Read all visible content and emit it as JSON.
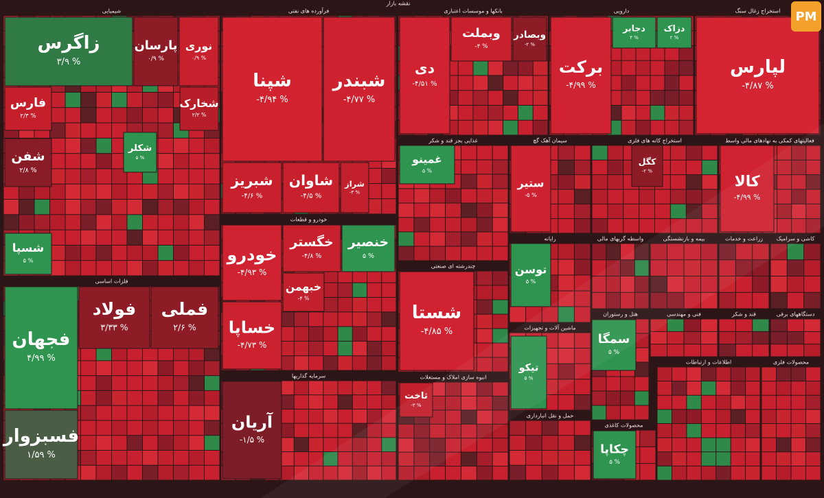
{
  "header": {
    "title": "نقشه بازار",
    "logo": "PM"
  },
  "sectors": [
    {
      "name": "شیمیایی",
      "tiles": [
        {
          "label": "زاگرس",
          "change": "۳/۹ %",
          "color": "#2f7a45"
        },
        {
          "label": "پارسان",
          "change": "۰/۹ %",
          "color": "#8d1c27"
        },
        {
          "label": "نوری",
          "change": "۰/۹ %",
          "color": "#c9202d"
        },
        {
          "label": "فارس",
          "change": "۲/۳ %",
          "color": "#c61f2c"
        },
        {
          "label": "شخارک",
          "change": "۲/۲ %",
          "color": "#b81e2a"
        },
        {
          "label": "شفن",
          "change": "۲/۸ %",
          "color": "#8a1c27"
        },
        {
          "label": "شکلر",
          "change": "۵ %",
          "color": "#2f9450"
        },
        {
          "label": "شسپا",
          "change": "۵ %",
          "color": "#2f9450"
        }
      ]
    },
    {
      "name": "فلزات اساسی",
      "tiles": [
        {
          "label": "فجهان",
          "change": "۴/۹۹ %",
          "color": "#2f9450"
        },
        {
          "label": "فسبزوار",
          "change": "۱/۵۹ %",
          "color": "#4a5d45"
        },
        {
          "label": "فولاد",
          "change": "۳/۳۳ %",
          "color": "#8d1c27"
        },
        {
          "label": "فملی",
          "change": "۲/۶ %",
          "color": "#8d1c27"
        }
      ]
    },
    {
      "name": "فرآورده های نفتی",
      "tiles": [
        {
          "label": "شپنا",
          "change": "-۴/۹۴ %",
          "color": "#d32331"
        },
        {
          "label": "شبندر",
          "change": "-۴/۷۷ %",
          "color": "#cf2230"
        },
        {
          "label": "شبریز",
          "change": "-۴/۶ %",
          "color": "#c9202d"
        },
        {
          "label": "شاوان",
          "change": "-۴/۵ %",
          "color": "#c9202d"
        },
        {
          "label": "شراز",
          "change": "-۳ %",
          "color": "#c1202c"
        }
      ]
    },
    {
      "name": "خودرو و قطعات",
      "tiles": [
        {
          "label": "خودرو",
          "change": "-۴/۹۳ %",
          "color": "#d02230"
        },
        {
          "label": "خساپا",
          "change": "-۴/۷۳ %",
          "color": "#cc2230"
        },
        {
          "label": "خگستر",
          "change": "-۴/۸ %",
          "color": "#c9202d"
        },
        {
          "label": "خنصیر",
          "change": "۵ %",
          "color": "#2f9450"
        },
        {
          "label": "خبهمن",
          "change": "-۴ %",
          "color": "#c1202c"
        }
      ]
    },
    {
      "name": "سرمایه گذاریها",
      "tiles": [
        {
          "label": "آریان",
          "change": "-۱/۵ %",
          "color": "#7c1d28"
        }
      ]
    },
    {
      "name": "بانکها و موسسات اعتباری",
      "tiles": [
        {
          "label": "دی",
          "change": "-۴/۵۱ %",
          "color": "#d02230"
        },
        {
          "label": "وبملت",
          "change": "-۴ %",
          "color": "#c9202d"
        },
        {
          "label": "وبصادر",
          "change": "-۲ %",
          "color": "#8d1c27"
        }
      ]
    },
    {
      "name": "دارویی",
      "tiles": [
        {
          "label": "برکت",
          "change": "-۴/۹۹ %",
          "color": "#d02230"
        },
        {
          "label": "دجابر",
          "change": "۳ %",
          "color": "#2f9450"
        },
        {
          "label": "دزاک",
          "change": "۲ %",
          "color": "#2f9450"
        }
      ]
    },
    {
      "name": "استخراج زغال سنگ",
      "tiles": [
        {
          "label": "لپارس",
          "change": "-۴/۸۷ %",
          "color": "#d52432"
        }
      ]
    },
    {
      "name": "غذایی بجز قند و شکر",
      "tiles": [
        {
          "label": "غمینو",
          "change": "۵ %",
          "color": "#2f9450"
        }
      ]
    },
    {
      "name": "سیمان آهک گچ",
      "tiles": [
        {
          "label": "ستیر",
          "change": "-۵ %",
          "color": "#cf2230"
        }
      ]
    },
    {
      "name": "استخراج کانه های فلزی",
      "tiles": [
        {
          "label": "کگل",
          "change": "-۲ %",
          "color": "#8d1c27"
        }
      ]
    },
    {
      "name": "فعالیتهای کمکی به نهادهای مالی واسط",
      "tiles": [
        {
          "label": "کالا",
          "change": "-۴/۹۹ %",
          "color": "#d02230"
        }
      ]
    },
    {
      "name": "چندرشته ای صنعتی",
      "tiles": [
        {
          "label": "شستا",
          "change": "-۴/۸۵ %",
          "color": "#d02230"
        }
      ]
    },
    {
      "name": "انبوه سازی املاک و مستغلات",
      "tiles": [
        {
          "label": "ثاخت",
          "change": "-۳ %",
          "color": "#c1202c"
        }
      ]
    },
    {
      "name": "رایانه",
      "tiles": [
        {
          "label": "توسن",
          "change": "۵ %",
          "color": "#2f9450"
        }
      ]
    },
    {
      "name": "واسطه گریهای مالی",
      "tiles": []
    },
    {
      "name": "بیمه و بازنشستگی",
      "tiles": []
    },
    {
      "name": "زراعت و خدمات",
      "tiles": []
    },
    {
      "name": "کاشی و سرامیک",
      "tiles": []
    },
    {
      "name": "ماشین آلات و تجهیزات",
      "tiles": [
        {
          "label": "تیکو",
          "change": "۵ %",
          "color": "#2f9450"
        }
      ]
    },
    {
      "name": "هتل و رستوران",
      "tiles": [
        {
          "label": "سمگا",
          "change": "۵ %",
          "color": "#2f9450"
        }
      ]
    },
    {
      "name": "فنی و مهندسی",
      "tiles": []
    },
    {
      "name": "قند و شکر",
      "tiles": []
    },
    {
      "name": "دستگاههای برقی",
      "tiles": []
    },
    {
      "name": "حمل و نقل انبارداری",
      "tiles": []
    },
    {
      "name": "محصولات کاغذی",
      "tiles": [
        {
          "label": "چکاپا",
          "change": "۵ %",
          "color": "#2f9450"
        }
      ]
    },
    {
      "name": "اطلاعات و ارتباطات",
      "tiles": []
    },
    {
      "name": "محصولات فلزی",
      "tiles": []
    }
  ]
}
